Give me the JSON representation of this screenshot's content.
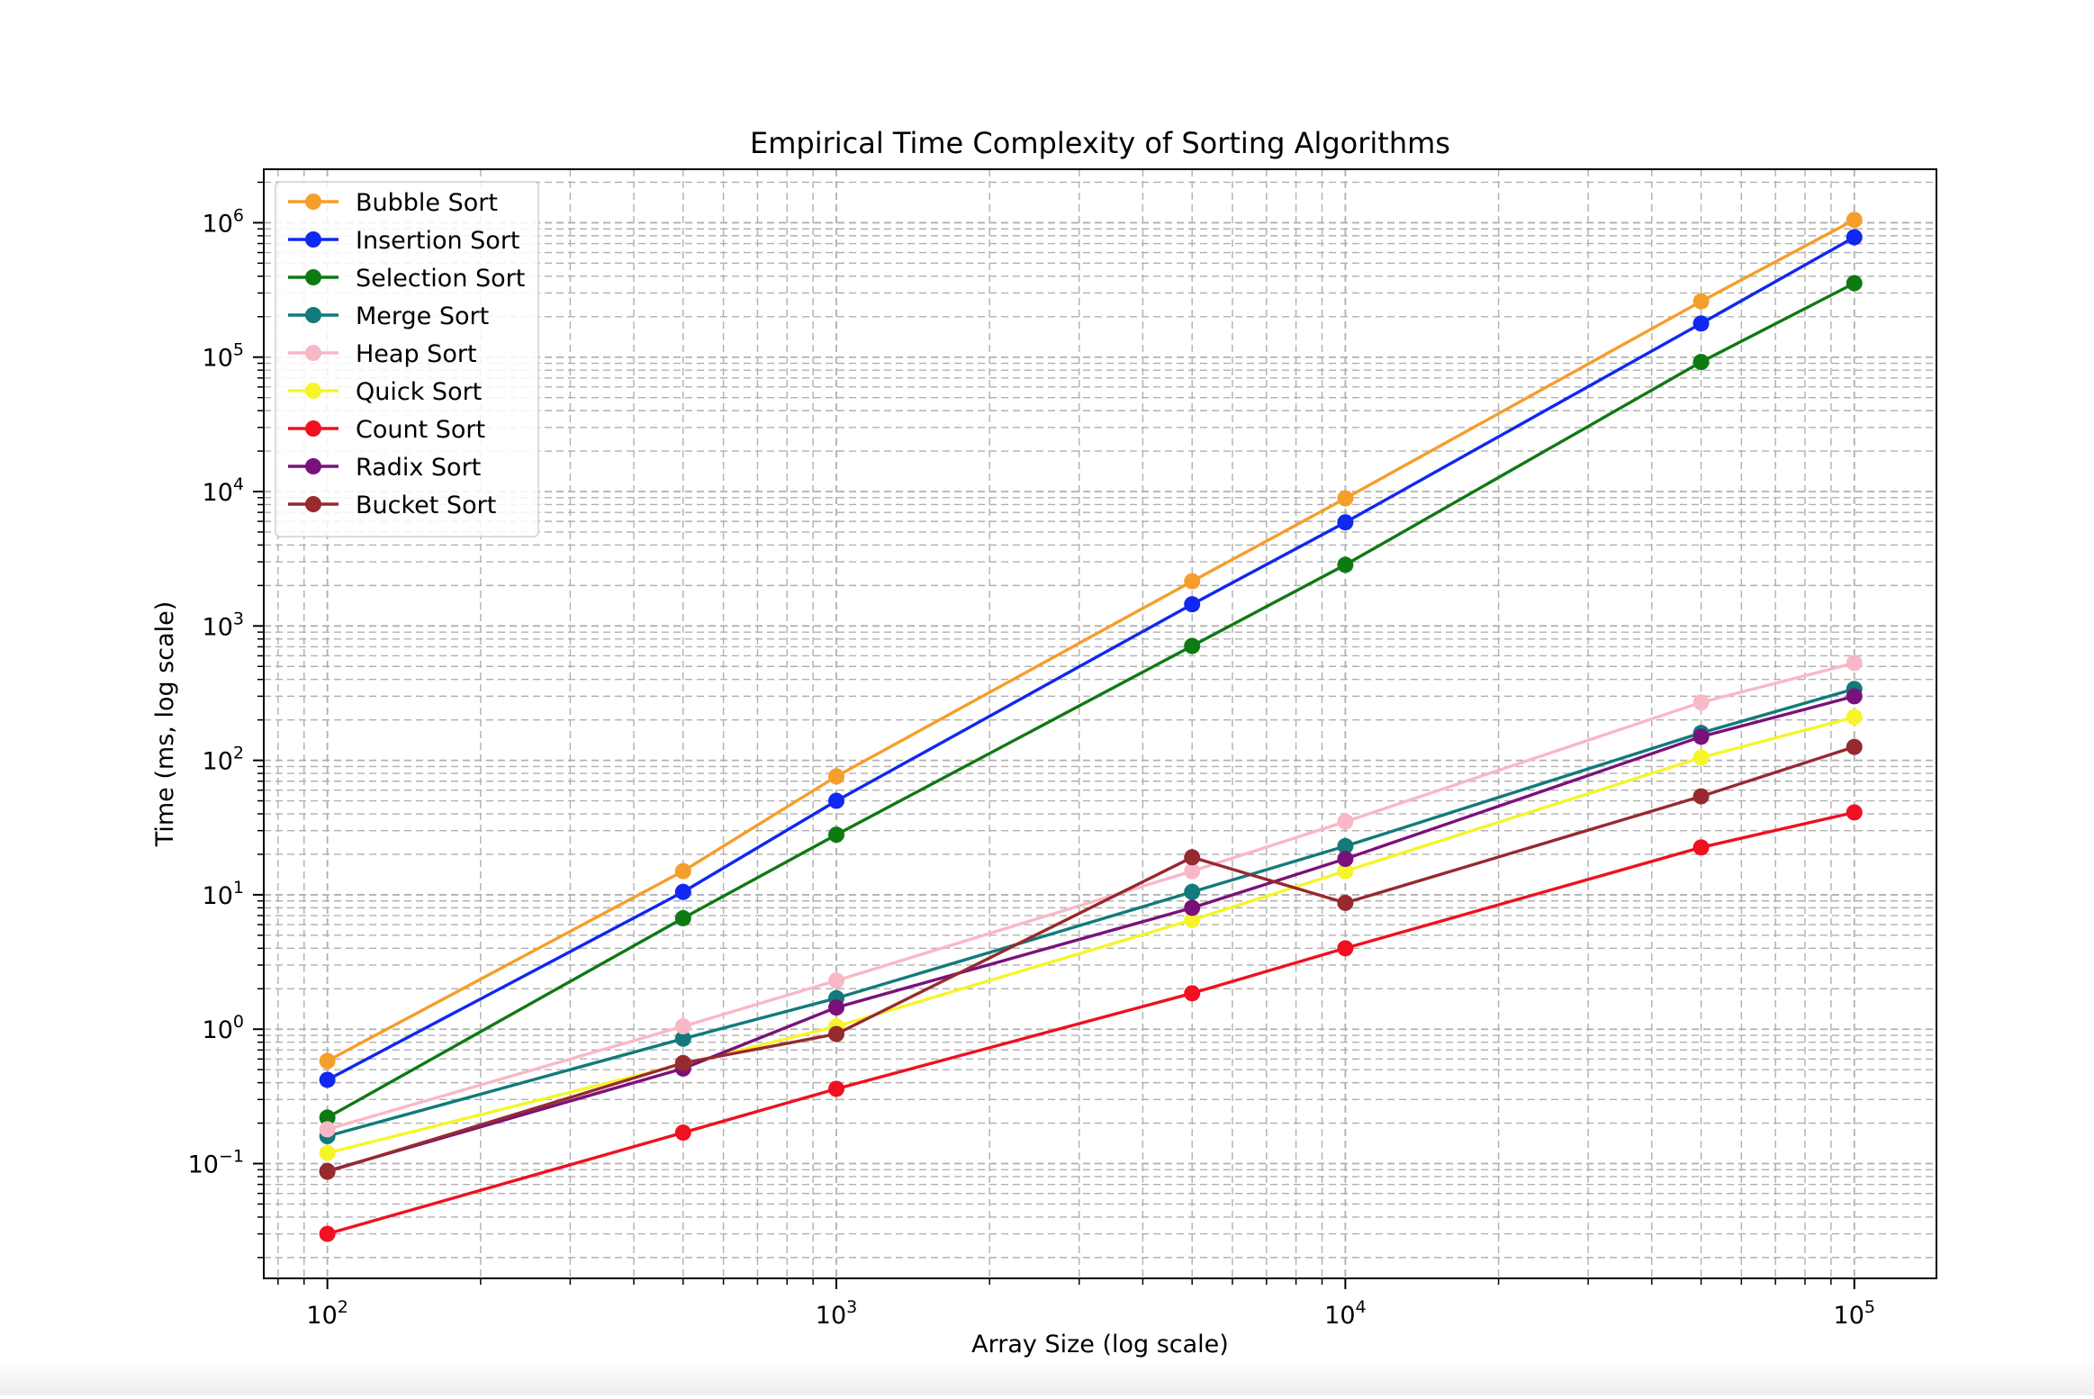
{
  "chart_data": {
    "type": "line",
    "title": "Empirical Time Complexity of Sorting Algorithms",
    "xlabel": "Array Size (log scale)",
    "ylabel": "Time (ms, log scale)",
    "x_scale": "log",
    "y_scale": "log",
    "xlim": [
      75,
      145000
    ],
    "ylim": [
      0.014,
      2500000
    ],
    "grid": true,
    "legend_position": "top-left",
    "x": [
      100,
      500,
      1000,
      5000,
      10000,
      50000,
      100000
    ],
    "x_ticks": [
      {
        "value": 100,
        "base": "10",
        "exp": "2"
      },
      {
        "value": 1000,
        "base": "10",
        "exp": "3"
      },
      {
        "value": 10000,
        "base": "10",
        "exp": "4"
      },
      {
        "value": 100000,
        "base": "10",
        "exp": "5"
      }
    ],
    "y_ticks": [
      {
        "value": 0.1,
        "base": "10",
        "exp": "−1"
      },
      {
        "value": 1,
        "base": "10",
        "exp": "0"
      },
      {
        "value": 10,
        "base": "10",
        "exp": "1"
      },
      {
        "value": 100,
        "base": "10",
        "exp": "2"
      },
      {
        "value": 1000,
        "base": "10",
        "exp": "3"
      },
      {
        "value": 10000,
        "base": "10",
        "exp": "4"
      },
      {
        "value": 100000,
        "base": "10",
        "exp": "5"
      },
      {
        "value": 1000000,
        "base": "10",
        "exp": "6"
      }
    ],
    "series": [
      {
        "name": "Bubble Sort",
        "color": "#f59e2b",
        "values": [
          0.58,
          15,
          76,
          2150,
          8900,
          260000,
          1050000
        ]
      },
      {
        "name": "Insertion Sort",
        "color": "#1028f0",
        "values": [
          0.42,
          10.5,
          50,
          1450,
          5900,
          178000,
          780000
        ]
      },
      {
        "name": "Selection Sort",
        "color": "#0e7a12",
        "values": [
          0.22,
          6.7,
          28,
          710,
          2850,
          92000,
          355000
        ]
      },
      {
        "name": "Merge Sort",
        "color": "#127a7a",
        "values": [
          0.16,
          0.85,
          1.7,
          10.5,
          23,
          160,
          340
        ]
      },
      {
        "name": "Heap Sort",
        "color": "#f8b8c8",
        "values": [
          0.18,
          1.05,
          2.3,
          15,
          35,
          270,
          530
        ]
      },
      {
        "name": "Quick Sort",
        "color": "#f5f52a",
        "values": [
          0.12,
          0.55,
          1.05,
          6.5,
          15,
          105,
          210
        ]
      },
      {
        "name": "Count Sort",
        "color": "#f01020",
        "values": [
          0.03,
          0.17,
          0.36,
          1.85,
          4.0,
          22.5,
          41
        ]
      },
      {
        "name": "Radix Sort",
        "color": "#7a117a",
        "values": [
          0.088,
          0.51,
          1.45,
          8.0,
          18.5,
          150,
          300
        ]
      },
      {
        "name": "Bucket Sort",
        "color": "#962a2e",
        "values": [
          0.087,
          0.56,
          0.92,
          19,
          8.7,
          54,
          126
        ]
      }
    ]
  }
}
